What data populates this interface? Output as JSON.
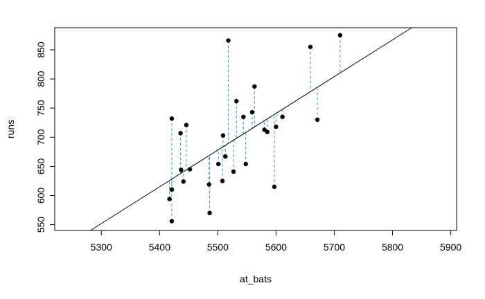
{
  "chart_data": {
    "type": "scatter",
    "title": "",
    "xlabel": "at_bats",
    "ylabel": "runs",
    "xlim": [
      5220,
      5910
    ],
    "ylim": [
      540,
      888
    ],
    "x_ticks": [
      5300,
      5400,
      5500,
      5600,
      5700,
      5800,
      5900
    ],
    "y_ticks": [
      550,
      600,
      650,
      700,
      750,
      800,
      850
    ],
    "grid": false,
    "colors": {
      "points": "#000000",
      "residuals": "#3399cc",
      "fit_line": "#000000"
    },
    "regression_line": {
      "intercept": -2789.8,
      "slope": 0.6305
    },
    "points": [
      {
        "x": 5417,
        "y": 594
      },
      {
        "x": 5421,
        "y": 732
      },
      {
        "x": 5421,
        "y": 610
      },
      {
        "x": 5421,
        "y": 556
      },
      {
        "x": 5436,
        "y": 707
      },
      {
        "x": 5437,
        "y": 644
      },
      {
        "x": 5441,
        "y": 624
      },
      {
        "x": 5446,
        "y": 721
      },
      {
        "x": 5452,
        "y": 645
      },
      {
        "x": 5485,
        "y": 619
      },
      {
        "x": 5486,
        "y": 570
      },
      {
        "x": 5501,
        "y": 654
      },
      {
        "x": 5508,
        "y": 625
      },
      {
        "x": 5509,
        "y": 703
      },
      {
        "x": 5513,
        "y": 667
      },
      {
        "x": 5518,
        "y": 866
      },
      {
        "x": 5527,
        "y": 641
      },
      {
        "x": 5532,
        "y": 762
      },
      {
        "x": 5544,
        "y": 735
      },
      {
        "x": 5548,
        "y": 654
      },
      {
        "x": 5559,
        "y": 743
      },
      {
        "x": 5563,
        "y": 787
      },
      {
        "x": 5580,
        "y": 713
      },
      {
        "x": 5585,
        "y": 709
      },
      {
        "x": 5597,
        "y": 615
      },
      {
        "x": 5600,
        "y": 718
      },
      {
        "x": 5611,
        "y": 735
      },
      {
        "x": 5659,
        "y": 855
      },
      {
        "x": 5671,
        "y": 730
      },
      {
        "x": 5710,
        "y": 875
      }
    ]
  }
}
